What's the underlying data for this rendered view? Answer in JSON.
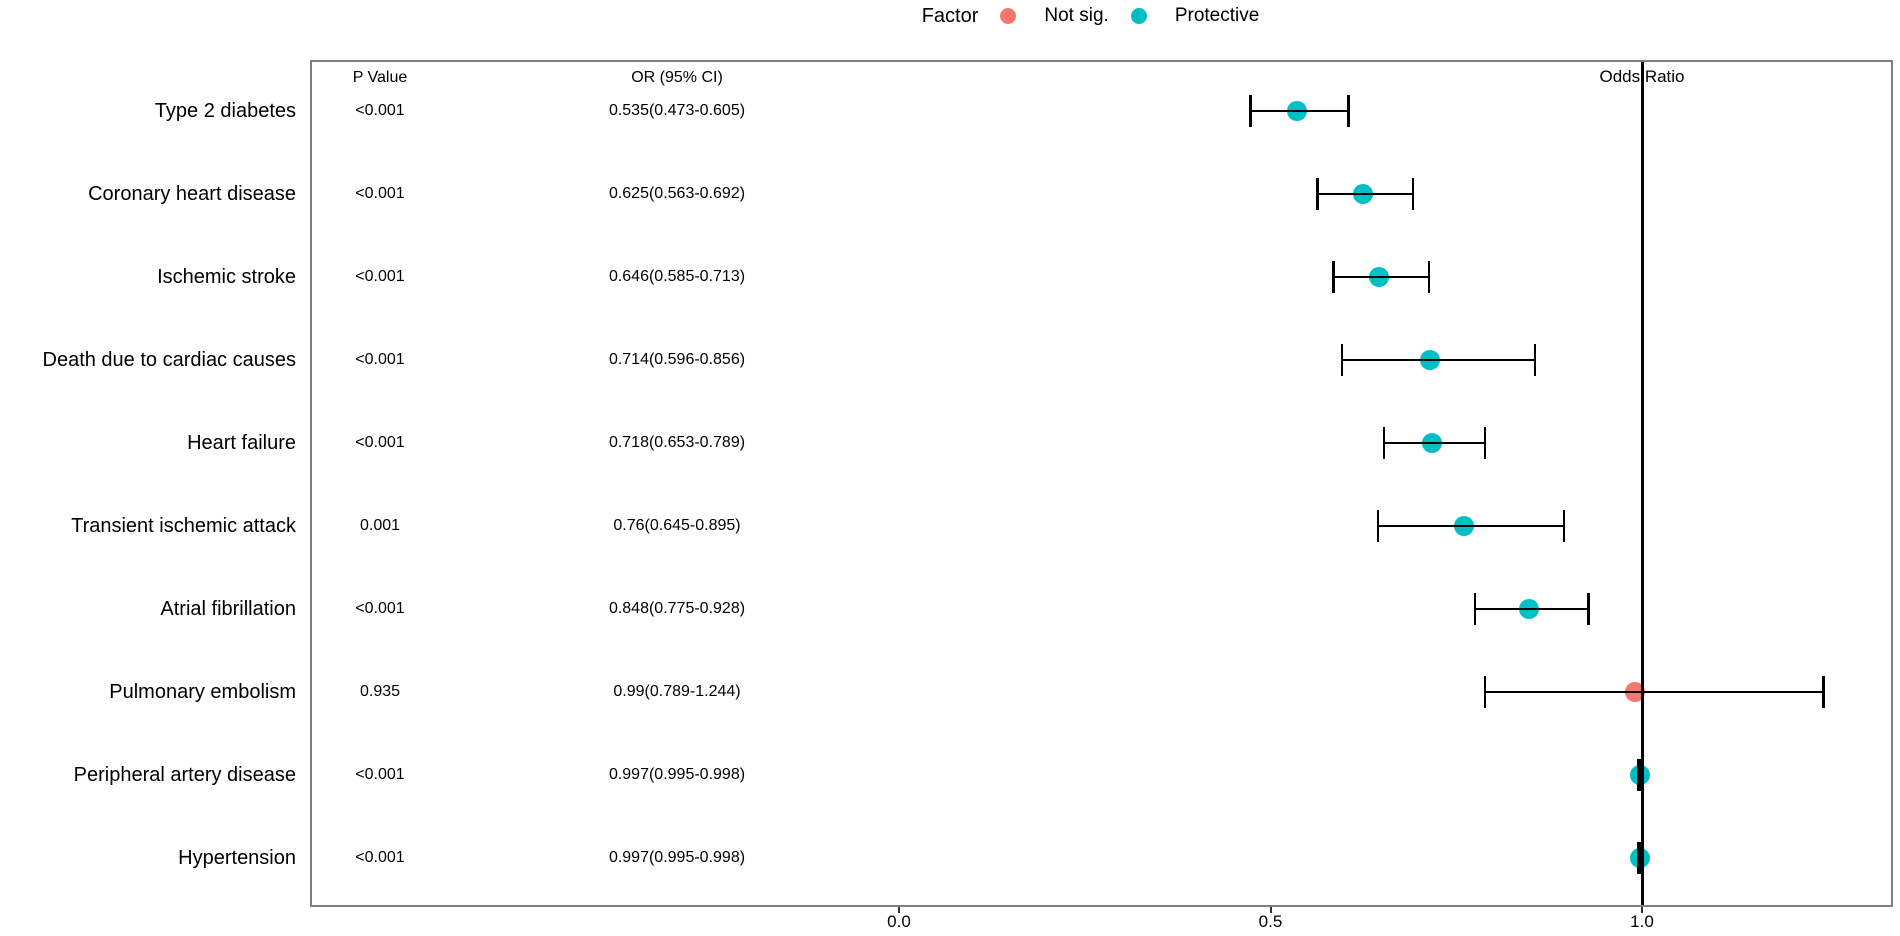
{
  "legend": {
    "title": "Factor",
    "items": [
      {
        "label": "Not sig.",
        "color": "#F8766D"
      },
      {
        "label": "Protective",
        "color": "#00BFC4"
      }
    ]
  },
  "table": {
    "columns": [
      "P Value",
      "OR (95% CI)"
    ]
  },
  "axis": {
    "label": "Odds Ratio",
    "ticks": [
      "0.0",
      "0.5",
      "1.0"
    ]
  },
  "chart_data": {
    "type": "scatter",
    "subtype": "forest_plot",
    "title": "",
    "xlabel": "Odds Ratio",
    "ylabel": "",
    "x_ticks": [
      0.0,
      0.5,
      1.0
    ],
    "xlim": [
      -0.8,
      1.34
    ],
    "reference_line_x": 1.0,
    "grid": false,
    "legend_position": "top",
    "point_colors": {
      "Not sig.": "#F8766D",
      "Protective": "#00BFC4"
    },
    "rows": [
      {
        "label": "Type 2 diabetes",
        "p_value": "<0.001",
        "or_ci": "0.535(0.473-0.605)",
        "or": 0.535,
        "ci_low": 0.473,
        "ci_high": 0.605,
        "factor": "Protective"
      },
      {
        "label": "Coronary heart disease",
        "p_value": "<0.001",
        "or_ci": "0.625(0.563-0.692)",
        "or": 0.625,
        "ci_low": 0.563,
        "ci_high": 0.692,
        "factor": "Protective"
      },
      {
        "label": "Ischemic stroke",
        "p_value": "<0.001",
        "or_ci": "0.646(0.585-0.713)",
        "or": 0.646,
        "ci_low": 0.585,
        "ci_high": 0.713,
        "factor": "Protective"
      },
      {
        "label": "Death due to cardiac causes",
        "p_value": "<0.001",
        "or_ci": "0.714(0.596-0.856)",
        "or": 0.714,
        "ci_low": 0.596,
        "ci_high": 0.856,
        "factor": "Protective"
      },
      {
        "label": "Heart failure",
        "p_value": "<0.001",
        "or_ci": "0.718(0.653-0.789)",
        "or": 0.718,
        "ci_low": 0.653,
        "ci_high": 0.789,
        "factor": "Protective"
      },
      {
        "label": "Transient ischemic attack",
        "p_value": "0.001",
        "or_ci": "0.76(0.645-0.895)",
        "or": 0.76,
        "ci_low": 0.645,
        "ci_high": 0.895,
        "factor": "Protective"
      },
      {
        "label": "Atrial fibrillation",
        "p_value": "<0.001",
        "or_ci": "0.848(0.775-0.928)",
        "or": 0.848,
        "ci_low": 0.775,
        "ci_high": 0.928,
        "factor": "Protective"
      },
      {
        "label": "Pulmonary embolism",
        "p_value": "0.935",
        "or_ci": "0.99(0.789-1.244)",
        "or": 0.99,
        "ci_low": 0.789,
        "ci_high": 1.244,
        "factor": "Not sig."
      },
      {
        "label": "Peripheral artery disease",
        "p_value": "<0.001",
        "or_ci": "0.997(0.995-0.998)",
        "or": 0.997,
        "ci_low": 0.995,
        "ci_high": 0.998,
        "factor": "Protective"
      },
      {
        "label": "Hypertension",
        "p_value": "<0.001",
        "or_ci": "0.997(0.995-0.998)",
        "or": 0.997,
        "ci_low": 0.995,
        "ci_high": 0.998,
        "factor": "Protective"
      }
    ]
  }
}
